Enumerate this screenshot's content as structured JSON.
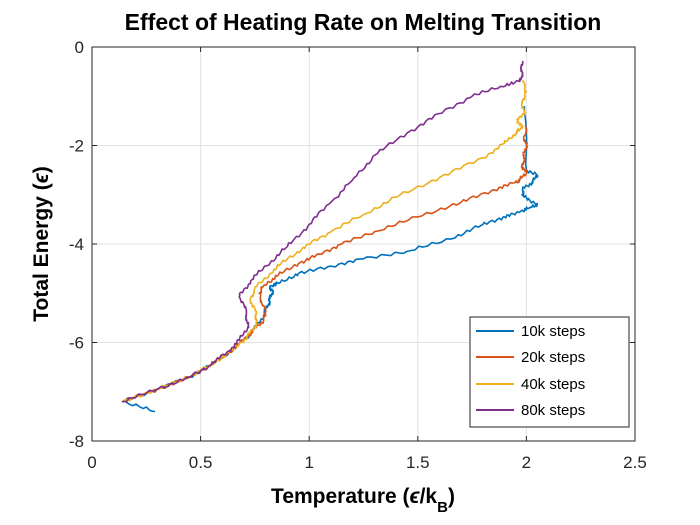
{
  "chart_data": {
    "type": "line",
    "title": "Effect of Heating Rate on Melting Transition",
    "xlabel": {
      "prefix": "Temperature (",
      "symbol": "ϵ",
      "mid": "/k",
      "subscript": "B",
      "suffix": ")"
    },
    "ylabel": {
      "prefix": "Total Energy (",
      "symbol": "ϵ",
      "suffix": ")"
    },
    "xlim": [
      0,
      2.5
    ],
    "ylim": [
      -8,
      0
    ],
    "xticks": [
      0,
      0.5,
      1,
      1.5,
      2,
      2.5
    ],
    "xtick_labels": [
      "0",
      "0.5",
      "1",
      "1.5",
      "2",
      "2.5"
    ],
    "yticks": [
      0,
      -2,
      -4,
      -6,
      -8
    ],
    "ytick_labels": [
      "0",
      "-2",
      "-4",
      "-6",
      "-8"
    ],
    "grid": true,
    "legend_position": "bottom-right",
    "series": [
      {
        "name": "10k steps",
        "color": "#0072BD",
        "x": [
          0.29,
          0.14,
          0.3,
          0.45,
          0.55,
          0.63,
          0.7,
          0.75,
          0.79,
          0.81,
          0.82,
          0.83,
          0.82,
          0.86,
          0.95,
          1.1,
          1.25,
          1.45,
          1.65,
          1.8,
          1.9,
          1.97,
          2.02,
          2.05,
          1.98,
          1.99,
          2.03,
          2.05,
          2.0,
          1.99
        ],
        "y": [
          -7.4,
          -7.2,
          -6.95,
          -6.7,
          -6.45,
          -6.2,
          -5.95,
          -5.7,
          -5.45,
          -5.25,
          -5.1,
          -4.95,
          -4.85,
          -4.8,
          -4.6,
          -4.45,
          -4.3,
          -4.15,
          -3.9,
          -3.6,
          -3.45,
          -3.35,
          -3.25,
          -3.2,
          -3.0,
          -2.85,
          -2.75,
          -2.6,
          -2.5,
          -1.2
        ]
      },
      {
        "name": "20k steps",
        "color": "#D95319",
        "x": [
          0.14,
          0.3,
          0.45,
          0.55,
          0.63,
          0.7,
          0.74,
          0.78,
          0.8,
          0.79,
          0.77,
          0.79,
          0.85,
          0.95,
          1.05,
          1.15,
          1.3,
          1.5,
          1.7,
          1.85,
          1.95,
          1.97,
          2.0,
          1.98,
          1.99,
          2.0,
          1.99,
          2.0
        ],
        "y": [
          -7.2,
          -6.95,
          -6.7,
          -6.45,
          -6.2,
          -5.95,
          -5.75,
          -5.6,
          -5.45,
          -5.25,
          -5.0,
          -4.85,
          -4.65,
          -4.4,
          -4.2,
          -4.0,
          -3.75,
          -3.45,
          -3.15,
          -2.9,
          -2.75,
          -2.7,
          -2.55,
          -2.4,
          -2.2,
          -2.0,
          -1.8,
          -1.6
        ]
      },
      {
        "name": "40k steps",
        "color": "#EDB120",
        "x": [
          0.14,
          0.3,
          0.45,
          0.55,
          0.63,
          0.7,
          0.74,
          0.76,
          0.75,
          0.73,
          0.75,
          0.82,
          0.9,
          1.0,
          1.1,
          1.25,
          1.4,
          1.6,
          1.8,
          1.9,
          1.95,
          1.98,
          1.96,
          1.99,
          1.98,
          2.0,
          1.98
        ],
        "y": [
          -7.2,
          -6.95,
          -6.7,
          -6.45,
          -6.2,
          -5.95,
          -5.75,
          -5.55,
          -5.35,
          -5.1,
          -4.9,
          -4.6,
          -4.3,
          -4.0,
          -3.75,
          -3.4,
          -3.05,
          -2.65,
          -2.25,
          -1.95,
          -1.75,
          -1.65,
          -1.5,
          -1.3,
          -1.1,
          -0.9,
          -0.7
        ]
      },
      {
        "name": "80k steps",
        "color": "#7E2F8E",
        "x": [
          0.14,
          0.3,
          0.45,
          0.55,
          0.62,
          0.68,
          0.72,
          0.71,
          0.68,
          0.73,
          0.8,
          0.9,
          1.0,
          1.1,
          1.2,
          1.3,
          1.45,
          1.6,
          1.75,
          1.88,
          1.97,
          1.98,
          1.98
        ],
        "y": [
          -7.2,
          -6.95,
          -6.7,
          -6.45,
          -6.2,
          -5.95,
          -5.65,
          -5.4,
          -5.05,
          -4.75,
          -4.45,
          -4.05,
          -3.6,
          -3.15,
          -2.7,
          -2.2,
          -1.75,
          -1.35,
          -1.0,
          -0.8,
          -0.7,
          -0.5,
          -0.3
        ]
      }
    ]
  }
}
